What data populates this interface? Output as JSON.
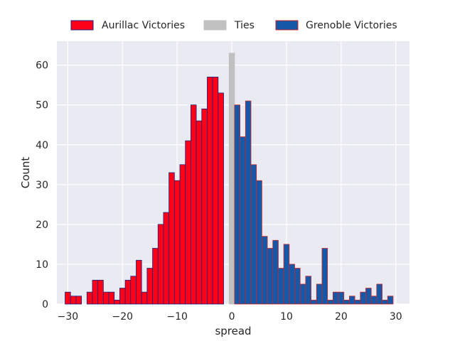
{
  "chart_data": {
    "type": "bar",
    "xlabel": "spread",
    "ylabel": "Count",
    "xlim": [
      -32,
      32.5
    ],
    "ylim": [
      0,
      66
    ],
    "xticks": [
      -30,
      -20,
      -10,
      0,
      10,
      20,
      30
    ],
    "yticks": [
      0,
      10,
      20,
      30,
      40,
      50,
      60
    ],
    "grid": true,
    "legend_placement": "top-center",
    "bin_width": 1,
    "series": [
      {
        "name": "Aurillac Victories",
        "fill": "#ff0019",
        "edge": "#1a237e",
        "x": [
          -30,
          -29,
          -28,
          -27,
          -26,
          -25,
          -24,
          -23,
          -22,
          -21,
          -20,
          -19,
          -18,
          -17,
          -16,
          -15,
          -14,
          -13,
          -12,
          -11,
          -10,
          -9,
          -8,
          -7,
          -6,
          -5,
          -4,
          -3,
          -2,
          -1
        ],
        "values": [
          3,
          2,
          2,
          0,
          3,
          6,
          6,
          3,
          3,
          1,
          4,
          6,
          7,
          11,
          3,
          9,
          14,
          20,
          23,
          33,
          31,
          35,
          41,
          50,
          46,
          49,
          57,
          57,
          53,
          0
        ]
      },
      {
        "name": "Ties",
        "fill": "#c0c0c0",
        "edge": "#c0c0c0",
        "x": [
          0
        ],
        "values": [
          63
        ]
      },
      {
        "name": "Grenoble Victories",
        "fill": "#1657a8",
        "edge": "#c62828",
        "x": [
          1,
          2,
          3,
          4,
          5,
          6,
          7,
          8,
          9,
          10,
          11,
          12,
          13,
          14,
          15,
          16,
          17,
          18,
          19,
          20,
          21,
          22,
          23,
          24,
          25,
          26,
          27,
          28,
          29
        ],
        "values": [
          50,
          42,
          51,
          35,
          31,
          17,
          14,
          16,
          9,
          15,
          10,
          9,
          5,
          7,
          1,
          5,
          14,
          1,
          3,
          3,
          1,
          2,
          1,
          3,
          4,
          2,
          5,
          1,
          2
        ]
      }
    ]
  }
}
